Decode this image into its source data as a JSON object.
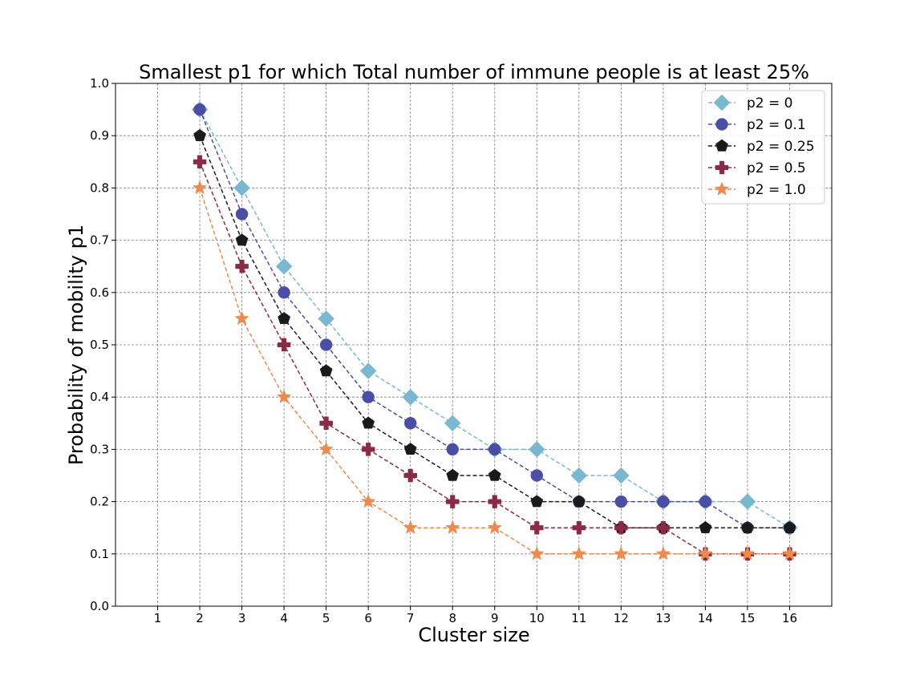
{
  "chart_data": {
    "type": "line",
    "title": "Smallest p1 for which Total number of immune people is at least 25%",
    "xlabel": "Cluster size",
    "ylabel": "Probability of mobility p1",
    "xlim": [
      0,
      17
    ],
    "ylim": [
      0.0,
      1.0
    ],
    "xticks": [
      1,
      2,
      3,
      4,
      5,
      6,
      7,
      8,
      9,
      10,
      11,
      12,
      13,
      14,
      15,
      16
    ],
    "xtick_labels": [
      "1",
      "2",
      "3",
      "4",
      "5",
      "6",
      "7",
      "8",
      "9",
      "10",
      "11",
      "12",
      "13",
      "14",
      "15",
      "16"
    ],
    "yticks": [
      0.0,
      0.1,
      0.2,
      0.3,
      0.4,
      0.5,
      0.6,
      0.7,
      0.8,
      0.9,
      1.0
    ],
    "ytick_labels": [
      "0.0",
      "0.1",
      "0.2",
      "0.3",
      "0.4",
      "0.5",
      "0.6",
      "0.7",
      "0.8",
      "0.9",
      "1.0"
    ],
    "grid": true,
    "legend_position": "top-right",
    "x": [
      2,
      3,
      4,
      5,
      6,
      7,
      8,
      9,
      10,
      11,
      12,
      13,
      14,
      15,
      16
    ],
    "series": [
      {
        "name": "p2 = 0",
        "color": "#79b8d1",
        "marker": "diamond",
        "values": [
          0.95,
          0.8,
          0.65,
          0.55,
          0.45,
          0.4,
          0.35,
          0.3,
          0.3,
          0.25,
          0.25,
          0.2,
          0.2,
          0.2,
          0.15
        ]
      },
      {
        "name": "p2 = 0.1",
        "color": "#4a4ea6",
        "marker": "circle",
        "values": [
          0.95,
          0.75,
          0.6,
          0.5,
          0.4,
          0.35,
          0.3,
          0.3,
          0.25,
          0.2,
          0.2,
          0.2,
          0.2,
          0.15,
          0.15
        ]
      },
      {
        "name": "p2 = 0.25",
        "color": "#1a1a1a",
        "marker": "pentagon",
        "values": [
          0.9,
          0.7,
          0.55,
          0.45,
          0.35,
          0.3,
          0.25,
          0.25,
          0.2,
          0.2,
          0.15,
          0.15,
          0.15,
          0.15,
          0.15
        ]
      },
      {
        "name": "p2 = 0.5",
        "color": "#8c2a45",
        "marker": "plus",
        "values": [
          0.85,
          0.65,
          0.5,
          0.35,
          0.3,
          0.25,
          0.2,
          0.2,
          0.15,
          0.15,
          0.15,
          0.15,
          0.1,
          0.1,
          0.1
        ]
      },
      {
        "name": "p2 = 1.0",
        "color": "#ef8a4a",
        "marker": "star",
        "values": [
          0.8,
          0.55,
          0.4,
          0.3,
          0.2,
          0.15,
          0.15,
          0.15,
          0.1,
          0.1,
          0.1,
          0.1,
          0.1,
          0.1,
          0.1
        ]
      }
    ]
  }
}
